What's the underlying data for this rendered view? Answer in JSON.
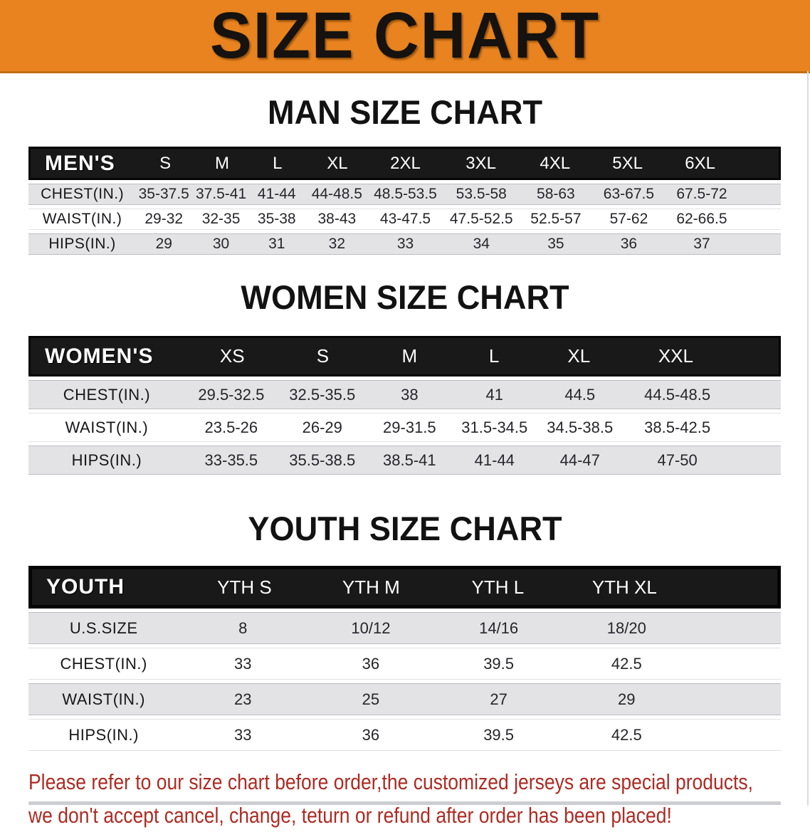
{
  "banner": {
    "title": "SIZE CHART"
  },
  "colors": {
    "banner_bg": "#E8831F",
    "header_bar": "#191919",
    "row_gray": "#E3E3E6",
    "disclaimer_red": "#AE2B23"
  },
  "sections": [
    {
      "title": "MAN SIZE CHART",
      "table": {
        "label": "MEN'S",
        "columns": [
          "S",
          "M",
          "L",
          "XL",
          "2XL",
          "3XL",
          "4XL",
          "5XL",
          "6XL"
        ],
        "rows": [
          {
            "label": "CHEST(IN.)",
            "values": [
              "35-37.5",
              "37.5-41",
              "41-44",
              "44-48.5",
              "48.5-53.5",
              "53.5-58",
              "58-63",
              "63-67.5",
              "67.5-72"
            ]
          },
          {
            "label": "WAIST(IN.)",
            "values": [
              "29-32",
              "32-35",
              "35-38",
              "38-43",
              "43-47.5",
              "47.5-52.5",
              "52.5-57",
              "57-62",
              "62-66.5"
            ]
          },
          {
            "label": "HIPS(IN.)",
            "values": [
              "29",
              "30",
              "31",
              "32",
              "33",
              "34",
              "35",
              "36",
              "37"
            ]
          }
        ]
      }
    },
    {
      "title": "WOMEN SIZE CHART",
      "table": {
        "label": "WOMEN'S",
        "columns": [
          "XS",
          "S",
          "M",
          "L",
          "XL",
          "XXL"
        ],
        "rows": [
          {
            "label": "CHEST(IN.)",
            "values": [
              "29.5-32.5",
              "32.5-35.5",
              "38",
              "41",
              "44.5",
              "44.5-48.5"
            ]
          },
          {
            "label": "WAIST(IN.)",
            "values": [
              "23.5-26",
              "26-29",
              "29-31.5",
              "31.5-34.5",
              "34.5-38.5",
              "38.5-42.5"
            ]
          },
          {
            "label": "HIPS(IN.)",
            "values": [
              "33-35.5",
              "35.5-38.5",
              "38.5-41",
              "41-44",
              "44-47",
              "47-50"
            ]
          }
        ]
      }
    },
    {
      "title": "YOUTH SIZE CHART",
      "table": {
        "label": "YOUTH",
        "columns": [
          "YTH S",
          "YTH M",
          "YTH L",
          "YTH XL"
        ],
        "rows": [
          {
            "label": "U.S.SIZE",
            "values": [
              "8",
              "10/12",
              "14/16",
              "18/20"
            ]
          },
          {
            "label": "CHEST(IN.)",
            "values": [
              "33",
              "36",
              "39.5",
              "42.5"
            ]
          },
          {
            "label": "WAIST(IN.)",
            "values": [
              "23",
              "25",
              "27",
              "29"
            ]
          },
          {
            "label": "HIPS(IN.)",
            "values": [
              "33",
              "36",
              "39.5",
              "42.5"
            ]
          }
        ]
      }
    }
  ],
  "disclaimer": {
    "line1": "Please refer to our size chart before order,the customized jerseys are special products,",
    "line2": "we don't accept cancel, change, teturn or refund after order has been placed!"
  }
}
